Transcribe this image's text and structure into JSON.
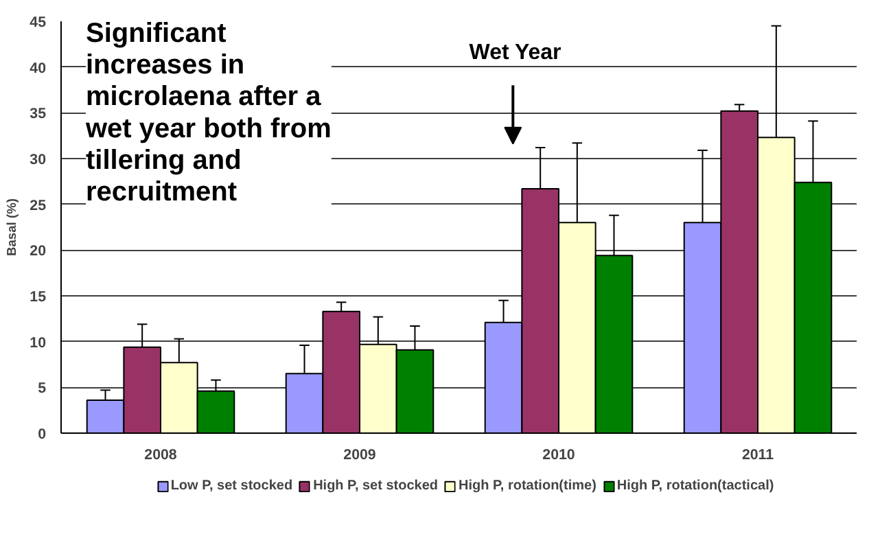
{
  "chart_data": {
    "type": "bar",
    "ylabel": "Basal (%)",
    "categories": [
      "2008",
      "2009",
      "2010",
      "2011"
    ],
    "series": [
      {
        "name": "Low P, set stocked",
        "color": "#9999ff",
        "values": [
          3.6,
          6.5,
          12.1,
          23.0
        ],
        "errors": [
          1.1,
          3.1,
          2.4,
          7.9
        ]
      },
      {
        "name": "High P, set stocked",
        "color": "#993366",
        "values": [
          9.4,
          13.3,
          26.7,
          35.2
        ],
        "errors": [
          2.5,
          1.0,
          4.5,
          0.7
        ]
      },
      {
        "name": "High P, rotation(time)",
        "color": "#ffffcc",
        "values": [
          7.7,
          9.7,
          23.0,
          32.3
        ],
        "errors": [
          2.6,
          3.0,
          8.7,
          12.2
        ]
      },
      {
        "name": "High P, rotation(tactical)",
        "color": "#008000",
        "values": [
          4.6,
          9.1,
          19.4,
          27.4
        ],
        "errors": [
          1.2,
          2.6,
          4.4,
          6.7
        ]
      }
    ],
    "ylim": [
      0,
      45
    ],
    "yticks": [
      0,
      5,
      10,
      15,
      20,
      25,
      30,
      35,
      40,
      45
    ],
    "grid": "y",
    "legend": "bottom",
    "annotations": [
      "Significant\nincreases in\nmicrolaena after a\nwet year both from\ntillering and\nrecruitment",
      "Wet Year"
    ]
  }
}
